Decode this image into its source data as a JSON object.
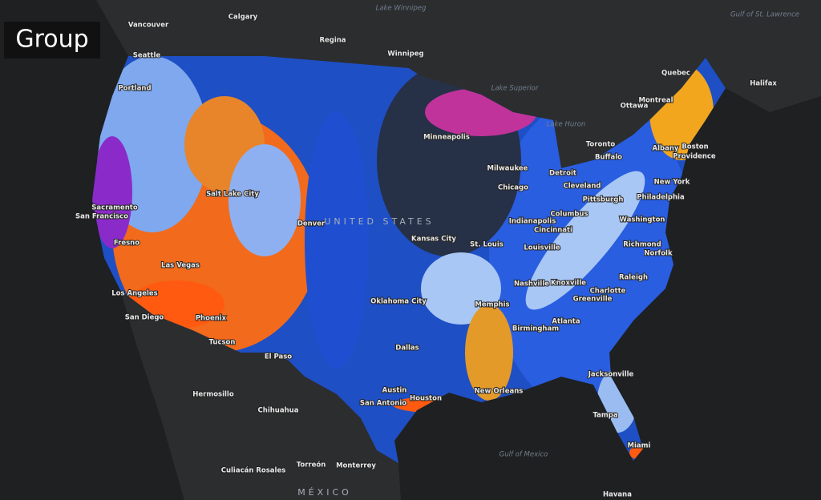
{
  "title": "Group",
  "labels": [
    {
      "text": "Vancouver"
    },
    {
      "text": "Calgary"
    },
    {
      "text": "Regina"
    },
    {
      "text": "Winnipeg"
    },
    {
      "text": "Lake Winnipeg"
    },
    {
      "text": "Seattle"
    },
    {
      "text": "Portland"
    },
    {
      "text": "Sacramento"
    },
    {
      "text": "San Francisco"
    },
    {
      "text": "Fresno"
    },
    {
      "text": "Las Vegas"
    },
    {
      "text": "Los Angeles"
    },
    {
      "text": "San Diego"
    },
    {
      "text": "Phoenix"
    },
    {
      "text": "Tucson"
    },
    {
      "text": "El Paso"
    },
    {
      "text": "Salt Lake City"
    },
    {
      "text": "Denver"
    },
    {
      "text": "Hermosillo"
    },
    {
      "text": "Chihuahua"
    },
    {
      "text": "Culiacán Rosales"
    },
    {
      "text": "Torreón"
    },
    {
      "text": "Monterrey"
    },
    {
      "text": "MÉXICO"
    },
    {
      "text": "UNITED STATES"
    },
    {
      "text": "Oklahoma City"
    },
    {
      "text": "Dallas"
    },
    {
      "text": "Austin"
    },
    {
      "text": "San Antonio"
    },
    {
      "text": "Houston"
    },
    {
      "text": "Kansas City"
    },
    {
      "text": "St. Louis"
    },
    {
      "text": "Memphis"
    },
    {
      "text": "Nashville"
    },
    {
      "text": "Birmingham"
    },
    {
      "text": "Atlanta"
    },
    {
      "text": "New Orleans"
    },
    {
      "text": "Jacksonville"
    },
    {
      "text": "Tampa"
    },
    {
      "text": "Miami"
    },
    {
      "text": "Havana"
    },
    {
      "text": "Gulf of Mexico"
    },
    {
      "text": "Minneapolis"
    },
    {
      "text": "Lake Superior"
    },
    {
      "text": "Lake Huron"
    },
    {
      "text": "Milwaukee"
    },
    {
      "text": "Chicago"
    },
    {
      "text": "Detroit"
    },
    {
      "text": "Cleveland"
    },
    {
      "text": "Indianapolis"
    },
    {
      "text": "Columbus"
    },
    {
      "text": "Cincinnati"
    },
    {
      "text": "Louisville"
    },
    {
      "text": "Knoxville"
    },
    {
      "text": "Charlotte"
    },
    {
      "text": "Greenville"
    },
    {
      "text": "Raleigh"
    },
    {
      "text": "Richmond"
    },
    {
      "text": "Norfolk"
    },
    {
      "text": "Washington"
    },
    {
      "text": "Philadelphia"
    },
    {
      "text": "Pittsburgh"
    },
    {
      "text": "New York"
    },
    {
      "text": "Boston"
    },
    {
      "text": "Albany"
    },
    {
      "text": "Providence"
    },
    {
      "text": "Buffalo"
    },
    {
      "text": "Toronto"
    },
    {
      "text": "Ottawa"
    },
    {
      "text": "Montreal"
    },
    {
      "text": "Quebec"
    },
    {
      "text": "Halifax"
    },
    {
      "text": "Gulf of St. Lawrence"
    }
  ]
}
